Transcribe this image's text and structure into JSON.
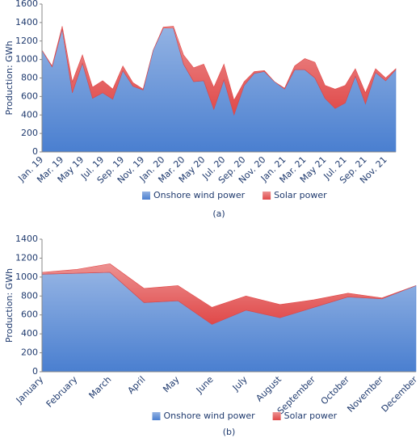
{
  "chart_data": [
    {
      "type": "area",
      "stacked": true,
      "caption": "(a)",
      "ylabel": "Production: GWh",
      "categories": [
        "Jan. 19",
        null,
        "Mar. 19",
        null,
        "May 19",
        null,
        "Jul. 19",
        null,
        "Sep. 19",
        null,
        "Nov. 19",
        null,
        "Jan. 20",
        null,
        "Mar. 20",
        null,
        "May 20",
        null,
        "Jul. 20",
        null,
        "Sep. 20",
        null,
        "Nov. 20",
        null,
        "Jan. 21",
        null,
        "Mar. 21",
        null,
        "May 21",
        null,
        "Jul. 21",
        null,
        "Sep. 21",
        null,
        "Nov. 21",
        null
      ],
      "series": [
        {
          "name": "Onshore wind power",
          "color": "#4a7fd0",
          "values": [
            1100,
            920,
            1330,
            640,
            960,
            580,
            640,
            570,
            880,
            710,
            670,
            1100,
            1340,
            1340,
            950,
            760,
            770,
            460,
            780,
            400,
            720,
            850,
            870,
            760,
            680,
            890,
            890,
            800,
            580,
            470,
            530,
            820,
            520,
            860,
            770,
            890
          ]
        },
        {
          "name": "Solar power",
          "color": "#e04848",
          "values": [
            0,
            10,
            30,
            120,
            90,
            120,
            130,
            110,
            50,
            40,
            10,
            0,
            10,
            20,
            100,
            150,
            180,
            240,
            170,
            160,
            40,
            20,
            10,
            0,
            10,
            40,
            120,
            170,
            140,
            210,
            190,
            80,
            120,
            40,
            30,
            10
          ]
        }
      ],
      "ylim": [
        0,
        1600
      ],
      "yticks": [
        0,
        200,
        400,
        600,
        800,
        1000,
        1200,
        1400,
        1600
      ],
      "legend": "bottom"
    },
    {
      "type": "area",
      "stacked": true,
      "caption": "(b)",
      "ylabel": "Production: GWh",
      "categories": [
        "January",
        "February",
        "March",
        "April",
        "May",
        "June",
        "July",
        "August",
        "September",
        "October",
        "November",
        "December"
      ],
      "series": [
        {
          "name": "Onshore wind power",
          "color": "#4a7fd0",
          "values": [
            1030,
            1040,
            1050,
            730,
            750,
            500,
            650,
            570,
            680,
            790,
            770,
            910
          ]
        },
        {
          "name": "Solar power",
          "color": "#e04848",
          "values": [
            20,
            40,
            90,
            150,
            160,
            180,
            150,
            140,
            80,
            40,
            10,
            0
          ]
        }
      ],
      "ylim": [
        0,
        1400
      ],
      "yticks": [
        0,
        200,
        400,
        600,
        800,
        1000,
        1200,
        1400
      ],
      "legend": "bottom"
    }
  ]
}
